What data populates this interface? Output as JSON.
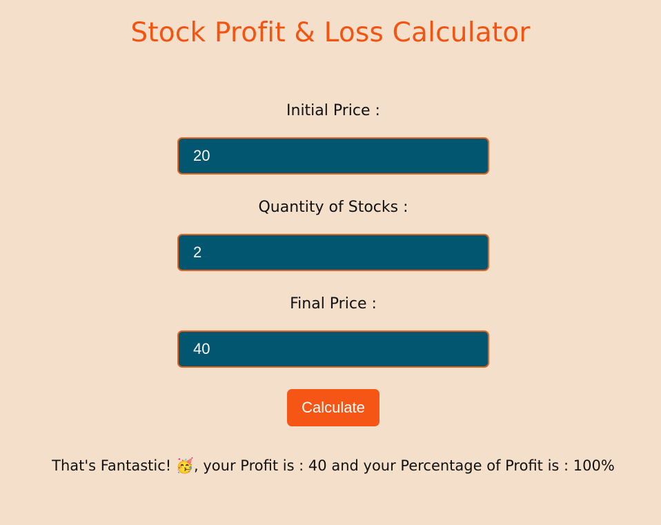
{
  "app": {
    "title": "Stock Profit & Loss Calculator",
    "accent_color": "#f55615",
    "input_bg_color": "#02566f",
    "page_bg_color": "#f3dfca"
  },
  "form": {
    "initial_price": {
      "label": "Initial Price :",
      "value": "20"
    },
    "quantity": {
      "label": "Quantity of Stocks :",
      "value": "2"
    },
    "final_price": {
      "label": "Final Price :",
      "value": "40"
    },
    "calculate_label": "Calculate"
  },
  "result": {
    "prefix": "That's Fantastic! ",
    "emoji": "🥳",
    "message": ", your Profit is : 40 and your Percentage of Profit is : 100%"
  }
}
